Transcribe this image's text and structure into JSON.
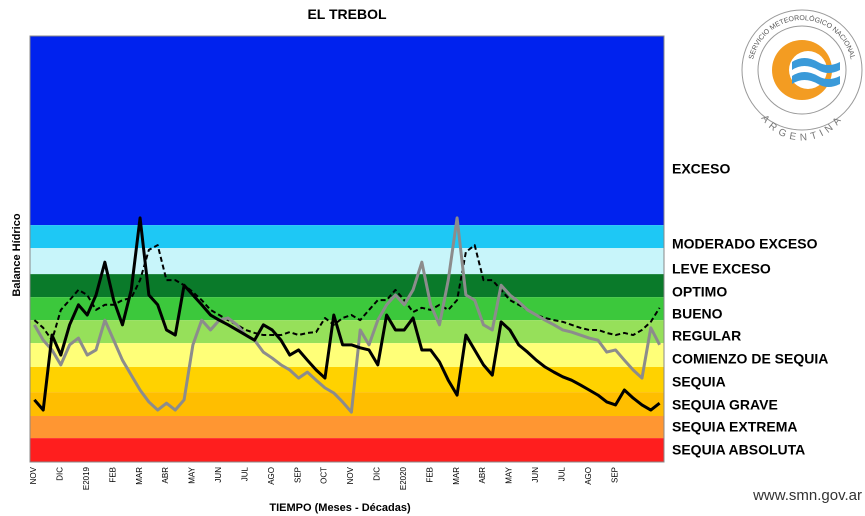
{
  "chart_data": {
    "type": "line",
    "title": "EL TREBOL",
    "y_label": "Balance Hídrico",
    "x_label": "TIEMPO (Meses - Décadas)",
    "categories": [
      "NOV",
      null,
      null,
      "DIC",
      null,
      null,
      "E2019",
      null,
      null,
      "FEB",
      null,
      null,
      "MAR",
      null,
      null,
      "ABR",
      null,
      null,
      "MAY",
      null,
      null,
      "JUN",
      null,
      null,
      "JUL",
      null,
      null,
      "AGO",
      null,
      null,
      "SEP",
      null,
      null,
      "OCT",
      null,
      null,
      "NOV",
      null,
      null,
      "DIC",
      null,
      null,
      "E2020",
      null,
      null,
      "FEB",
      null,
      null,
      "MAR",
      null,
      null,
      "ABR",
      null,
      null,
      "MAY",
      null,
      null,
      "JUN",
      null,
      null,
      "JUL",
      null,
      null,
      "AGO",
      null,
      null,
      "SEP",
      null,
      null,
      null,
      null,
      null
    ],
    "ylim": [
      0,
      100
    ],
    "bands": [
      {
        "label": "EXCESO",
        "color": "#0022ee",
        "from": 55.6,
        "to": 100
      },
      {
        "label": "MODERADO EXCESO",
        "color": "#1ec8f5",
        "from": 50.2,
        "to": 55.6
      },
      {
        "label": "LEVE EXCESO",
        "color": "#c8f5fa",
        "from": 44.1,
        "to": 50.2
      },
      {
        "label": "OPTIMO",
        "color": "#0a7a2a",
        "from": 38.7,
        "to": 44.1
      },
      {
        "label": "BUENO",
        "color": "#3cc83c",
        "from": 33.3,
        "to": 38.7
      },
      {
        "label": "REGULAR",
        "color": "#96e05a",
        "from": 27.9,
        "to": 33.3
      },
      {
        "label": "COMIENZO DE SEQUIA",
        "color": "#ffff78",
        "from": 22.3,
        "to": 27.9
      },
      {
        "label": "SEQUIA",
        "color": "#ffd200",
        "from": 16.4,
        "to": 22.3
      },
      {
        "label": "SEQUIA GRAVE",
        "color": "#ffbe00",
        "from": 10.8,
        "to": 16.4
      },
      {
        "label": "SEQUIA EXTREMA",
        "color": "#ff9632",
        "from": 5.6,
        "to": 10.8
      },
      {
        "label": "SEQUIA ABSOLUTA",
        "color": "#ff1e1e",
        "from": 0,
        "to": 5.6
      }
    ],
    "series": [
      {
        "color": "#000000",
        "dashed": false,
        "width": 3,
        "values": [
          14.6,
          12.2,
          29.8,
          25.1,
          32.2,
          36.9,
          34.5,
          39.2,
          46.9,
          38.0,
          32.2,
          40.4,
          57.3,
          39.2,
          36.9,
          31.0,
          29.8,
          41.5,
          39.2,
          36.9,
          34.5,
          33.3,
          32.2,
          31.0,
          29.8,
          28.6,
          32.2,
          31.0,
          28.6,
          25.1,
          26.3,
          23.9,
          21.6,
          19.7,
          34.5,
          27.5,
          27.5,
          26.8,
          26.3,
          22.8,
          34.5,
          31.0,
          31.0,
          33.8,
          26.3,
          26.3,
          23.5,
          19.2,
          15.7,
          29.8,
          26.3,
          22.8,
          20.4,
          32.9,
          31.0,
          27.5,
          25.8,
          23.9,
          22.3,
          21.1,
          20.0,
          19.2,
          18.1,
          16.9,
          15.7,
          14.1,
          13.4,
          16.9,
          15.0,
          13.4,
          12.2,
          13.8
        ]
      },
      {
        "color": "#000000",
        "dashed": true,
        "width": 2,
        "values": [
          33.3,
          31.5,
          28.6,
          35.7,
          38.0,
          40.4,
          39.2,
          35.7,
          36.9,
          36.9,
          38.0,
          38.5,
          42.7,
          49.8,
          50.9,
          42.7,
          42.7,
          41.5,
          39.9,
          38.0,
          35.7,
          34.5,
          33.3,
          32.2,
          31.0,
          30.3,
          29.8,
          29.8,
          29.8,
          30.5,
          29.8,
          30.3,
          30.5,
          33.8,
          32.2,
          33.8,
          34.5,
          33.3,
          35.7,
          38.0,
          38.0,
          40.4,
          38.0,
          35.2,
          36.2,
          35.7,
          36.9,
          35.7,
          38.0,
          49.3,
          50.9,
          42.7,
          42.7,
          40.4,
          38.0,
          36.9,
          35.7,
          34.5,
          33.8,
          33.3,
          32.9,
          32.2,
          31.5,
          31.0,
          31.0,
          30.3,
          29.8,
          30.3,
          29.8,
          31.0,
          32.9,
          36.2
        ]
      },
      {
        "color": "#8c8c8c",
        "dashed": false,
        "width": 3,
        "values": [
          32.2,
          28.6,
          26.3,
          22.8,
          27.5,
          29.1,
          25.1,
          26.3,
          33.3,
          28.6,
          23.9,
          20.4,
          16.9,
          14.1,
          12.2,
          13.8,
          12.2,
          14.6,
          27.5,
          33.3,
          31.0,
          33.3,
          33.8,
          32.2,
          29.8,
          28.6,
          25.8,
          24.4,
          22.8,
          21.6,
          19.7,
          21.1,
          19.2,
          17.4,
          16.2,
          14.1,
          11.7,
          31.0,
          27.5,
          33.3,
          36.9,
          39.2,
          36.9,
          40.4,
          46.9,
          36.9,
          32.2,
          42.7,
          57.3,
          39.2,
          38.0,
          32.2,
          31.0,
          41.5,
          39.2,
          37.6,
          35.7,
          34.5,
          33.3,
          32.2,
          31.0,
          30.5,
          29.8,
          29.1,
          28.6,
          25.8,
          26.3,
          23.9,
          21.6,
          19.7,
          31.5,
          27.5
        ]
      }
    ]
  },
  "logo": {
    "top_text": "SERVICIO METEOROLÓGICO NACIONAL",
    "bottom_text": "ARGENTINA"
  },
  "footer": "www.smn.gov.ar"
}
